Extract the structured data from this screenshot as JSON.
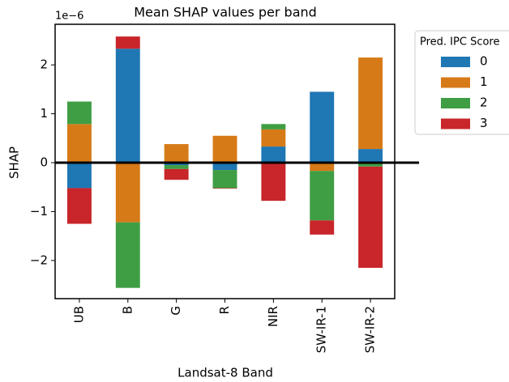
{
  "chart_data": {
    "type": "bar",
    "stacked": true,
    "title": "Mean SHAP values per band",
    "x_label": "Landsat-8 Band",
    "y_label": "SHAP",
    "offset_label": "1e−6",
    "legend_title": "Pred. IPC Score",
    "legend_position": "outside-upper-right",
    "categories": [
      "UB",
      "B",
      "G",
      "R",
      "NIR",
      "SW-IR-1",
      "SW-IR-2"
    ],
    "series": [
      {
        "name": "0",
        "color": "#1f77b4",
        "values": [
          -0.52,
          2.33,
          -0.05,
          -0.15,
          0.33,
          1.45,
          0.28
        ]
      },
      {
        "name": "1",
        "color": "#d67a18",
        "values": [
          0.79,
          -1.22,
          0.38,
          0.55,
          0.35,
          -0.17,
          1.87
        ]
      },
      {
        "name": "2",
        "color": "#3f9e44",
        "values": [
          0.46,
          -1.34,
          -0.08,
          -0.37,
          0.11,
          -1.01,
          -0.08
        ]
      },
      {
        "name": "3",
        "color": "#c8262a",
        "values": [
          -0.73,
          0.25,
          -0.22,
          -0.01,
          -0.78,
          -0.29,
          -2.07
        ]
      }
    ],
    "ylim": [
      -2.78,
      2.83
    ],
    "yticks": [
      {
        "value": -2,
        "label": "−2"
      },
      {
        "value": -1,
        "label": "−1"
      },
      0,
      1,
      2
    ],
    "zero_line": true
  }
}
